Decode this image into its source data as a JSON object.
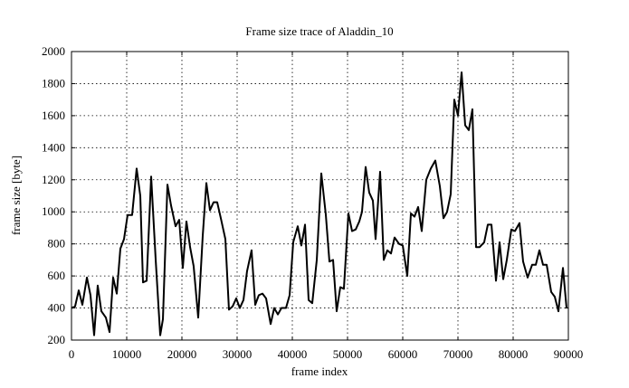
{
  "chart_data": {
    "type": "line",
    "title": "Frame size trace of Aladdin_10",
    "xlabel": "frame index",
    "ylabel": "frame size [byte]",
    "x": [
      0,
      650,
      1310,
      1970,
      2790,
      3440,
      4100,
      4750,
      5410,
      6230,
      6890,
      7540,
      8200,
      8850,
      9510,
      10160,
      10980,
      11800,
      12460,
      12950,
      13610,
      14430,
      15250,
      16070,
      16560,
      17380,
      18030,
      18850,
      19510,
      20160,
      20820,
      21480,
      22130,
      22950,
      23770,
      24430,
      25080,
      25740,
      26390,
      27050,
      27870,
      28520,
      29180,
      29840,
      30490,
      31150,
      31800,
      32620,
      33280,
      33930,
      34590,
      35250,
      36070,
      36720,
      37380,
      38030,
      38850,
      39510,
      40160,
      40980,
      41640,
      42300,
      42950,
      43610,
      44430,
      45250,
      46070,
      46720,
      47380,
      48030,
      48690,
      49340,
      50160,
      50820,
      51480,
      52130,
      52620,
      53280,
      53930,
      54590,
      55080,
      55900,
      56560,
      57210,
      57870,
      58520,
      59340,
      60000,
      60820,
      61480,
      62130,
      62790,
      63440,
      64260,
      65080,
      65900,
      66720,
      67380,
      68030,
      68690,
      69340,
      70000,
      70660,
      71310,
      71970,
      72620,
      73280,
      73930,
      74750,
      75410,
      76070,
      76890,
      77540,
      78200,
      78850,
      79670,
      80330,
      81150,
      81800,
      82620,
      83440,
      84100,
      84750,
      85410,
      86070,
      86890,
      87540,
      88200,
      89020,
      89670
    ],
    "series": [
      {
        "name": "Aladdin_10",
        "color": "#000000",
        "values": [
          400,
          410,
          510,
          420,
          590,
          480,
          230,
          540,
          380,
          340,
          250,
          590,
          490,
          770,
          830,
          980,
          980,
          1270,
          1100,
          560,
          570,
          1220,
          700,
          230,
          330,
          1170,
          1040,
          910,
          950,
          650,
          940,
          780,
          660,
          340,
          850,
          1180,
          1010,
          1060,
          1060,
          960,
          830,
          390,
          410,
          460,
          400,
          450,
          630,
          760,
          420,
          480,
          490,
          460,
          300,
          400,
          360,
          400,
          400,
          480,
          810,
          910,
          790,
          920,
          450,
          430,
          700,
          1240,
          980,
          690,
          700,
          380,
          530,
          520,
          990,
          880,
          890,
          940,
          1000,
          1280,
          1120,
          1070,
          830,
          1250,
          700,
          760,
          740,
          840,
          800,
          790,
          600,
          990,
          970,
          1030,
          880,
          1200,
          1270,
          1320,
          1160,
          960,
          1000,
          1110,
          1700,
          1600,
          1870,
          1540,
          1510,
          1640,
          780,
          780,
          810,
          920,
          920,
          570,
          810,
          580,
          700,
          890,
          880,
          930,
          690,
          590,
          670,
          670,
          760,
          670,
          670,
          500,
          470,
          380,
          650,
          400
        ]
      }
    ],
    "xlim": [
      0,
      90000
    ],
    "ylim": [
      200,
      2000
    ],
    "xticks": [
      0,
      10000,
      20000,
      30000,
      40000,
      50000,
      60000,
      70000,
      80000,
      90000
    ],
    "yticks": [
      200,
      400,
      600,
      800,
      1000,
      1200,
      1400,
      1600,
      1800,
      2000
    ],
    "grid": true
  }
}
